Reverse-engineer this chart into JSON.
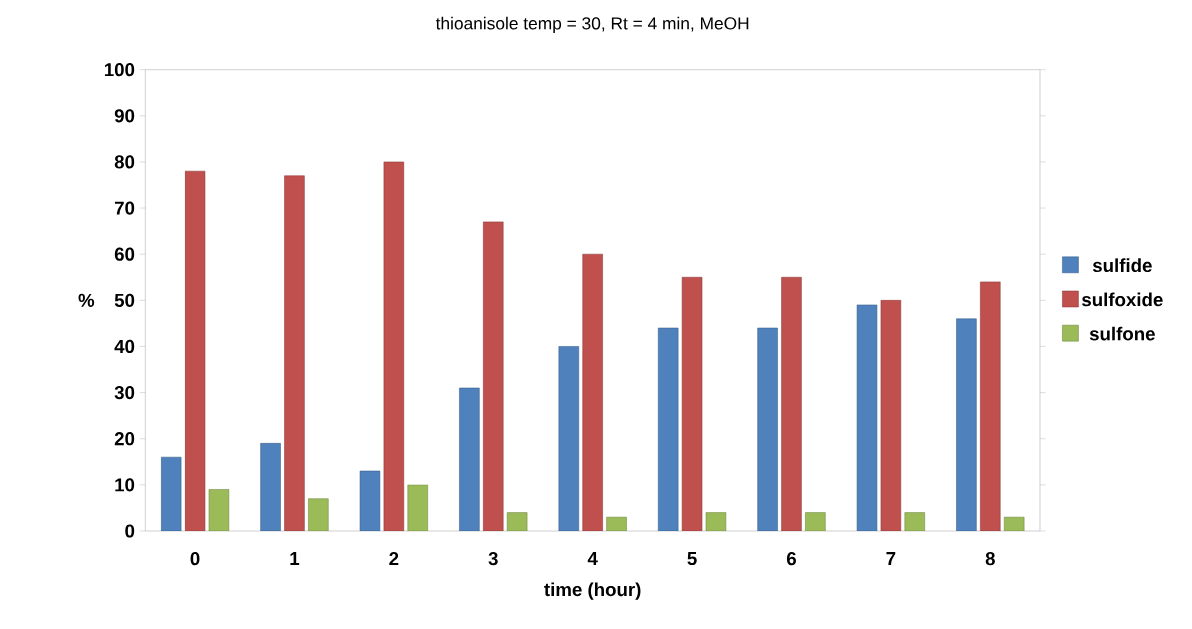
{
  "chart_data": {
    "type": "bar",
    "title": "thioanisole temp = 30, Rt = 4 min, MeOH",
    "xlabel": "time (hour)",
    "ylabel": "%",
    "categories": [
      "0",
      "1",
      "2",
      "3",
      "4",
      "5",
      "6",
      "7",
      "8"
    ],
    "series": [
      {
        "name": "sulfide",
        "color": "#4f81bd",
        "values": [
          16,
          19,
          13,
          31,
          40,
          44,
          44,
          49,
          46
        ]
      },
      {
        "name": "sulfoxide",
        "color": "#c0504d",
        "values": [
          78,
          77,
          80,
          67,
          60,
          55,
          55,
          50,
          54
        ]
      },
      {
        "name": "sulfone",
        "color": "#9bbb59",
        "values": [
          9,
          7,
          10,
          4,
          3,
          4,
          4,
          4,
          3
        ]
      }
    ],
    "ylim": [
      0,
      100
    ],
    "yticks": [
      0,
      10,
      20,
      30,
      40,
      50,
      60,
      70,
      80,
      90,
      100
    ],
    "legend": "right",
    "grid": false
  }
}
